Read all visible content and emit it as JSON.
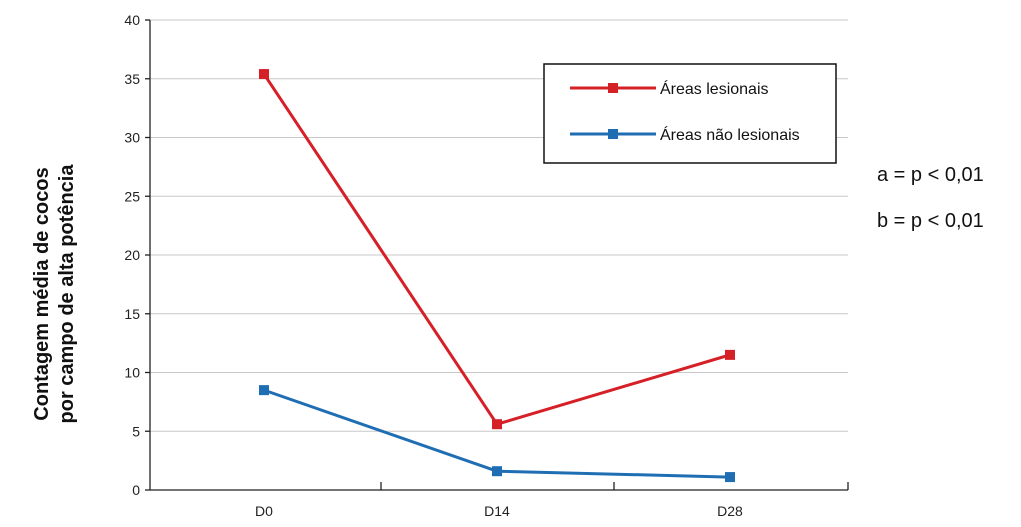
{
  "chart_data": {
    "type": "line",
    "categories": [
      "D0",
      "D14",
      "D28"
    ],
    "series": [
      {
        "name": "Áreas lesionais",
        "values": [
          35.4,
          5.6,
          11.5
        ],
        "color": "#d62027"
      },
      {
        "name": "Áreas não lesionais",
        "values": [
          8.5,
          1.6,
          1.1
        ],
        "color": "#1f6eb4"
      }
    ],
    "ylabel_line1": "Contagem média de cocos",
    "ylabel_line2": "por campo de alta potência",
    "ylim": [
      0,
      40
    ],
    "yticks": [
      0,
      5,
      10,
      15,
      20,
      25,
      30,
      35,
      40
    ],
    "grid": true,
    "legend_placement": "top-right",
    "annotations": [
      "a = p < 0,01",
      "b = p < 0,01"
    ]
  }
}
